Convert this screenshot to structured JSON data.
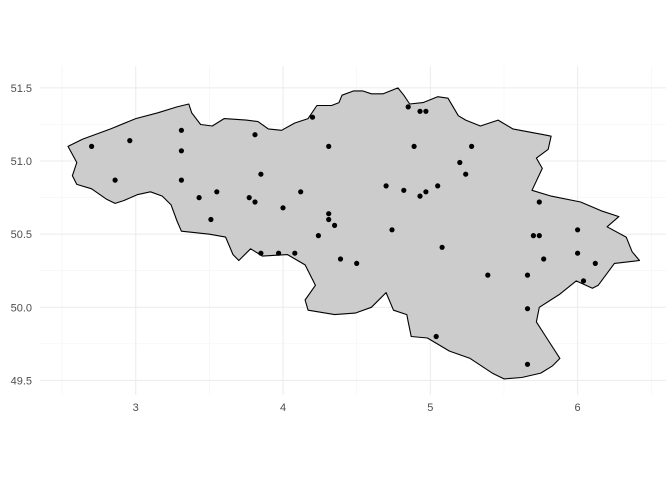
{
  "chart_data": {
    "type": "scatter",
    "title": "",
    "xlabel": "",
    "ylabel": "",
    "xlim": [
      2.35,
      6.6
    ],
    "ylim": [
      49.4,
      51.65
    ],
    "x_ticks": [
      3,
      4,
      5,
      6
    ],
    "x_tick_labels": [
      "3",
      "4",
      "5",
      "6"
    ],
    "y_ticks": [
      49.5,
      50.0,
      50.5,
      51.0,
      51.5
    ],
    "y_tick_labels": [
      "49.5",
      "50.0",
      "50.5",
      "51.0",
      "51.5"
    ],
    "grid": true,
    "legend": "none",
    "colors": {
      "fill": "#cccccc",
      "outline": "#000000",
      "points": "#000000",
      "grid": "#ebebeb",
      "tick_text": "#4d4d4d"
    },
    "outline": [
      [
        2.54,
        51.1
      ],
      [
        2.64,
        51.15
      ],
      [
        2.83,
        51.22
      ],
      [
        3.0,
        51.29
      ],
      [
        3.15,
        51.33
      ],
      [
        3.28,
        51.37
      ],
      [
        3.36,
        51.39
      ],
      [
        3.38,
        51.33
      ],
      [
        3.44,
        51.25
      ],
      [
        3.52,
        51.24
      ],
      [
        3.6,
        51.29
      ],
      [
        3.75,
        51.28
      ],
      [
        3.83,
        51.27
      ],
      [
        3.9,
        51.22
      ],
      [
        3.99,
        51.21
      ],
      [
        4.08,
        51.26
      ],
      [
        4.17,
        51.29
      ],
      [
        4.23,
        51.38
      ],
      [
        4.33,
        51.38
      ],
      [
        4.38,
        51.4
      ],
      [
        4.4,
        51.45
      ],
      [
        4.48,
        51.48
      ],
      [
        4.54,
        51.48
      ],
      [
        4.6,
        51.46
      ],
      [
        4.68,
        51.46
      ],
      [
        4.78,
        51.5
      ],
      [
        4.82,
        51.45
      ],
      [
        4.86,
        51.39
      ],
      [
        4.95,
        51.4
      ],
      [
        5.05,
        51.44
      ],
      [
        5.12,
        51.43
      ],
      [
        5.19,
        51.31
      ],
      [
        5.24,
        51.28
      ],
      [
        5.34,
        51.24
      ],
      [
        5.46,
        51.28
      ],
      [
        5.56,
        51.22
      ],
      [
        5.77,
        51.18
      ],
      [
        5.82,
        51.17
      ],
      [
        5.8,
        51.08
      ],
      [
        5.72,
        51.02
      ],
      [
        5.76,
        50.95
      ],
      [
        5.69,
        50.8
      ],
      [
        5.82,
        50.76
      ],
      [
        6.02,
        50.72
      ],
      [
        6.16,
        50.66
      ],
      [
        6.28,
        50.62
      ],
      [
        6.2,
        50.55
      ],
      [
        6.33,
        50.48
      ],
      [
        6.37,
        50.38
      ],
      [
        6.42,
        50.32
      ],
      [
        6.25,
        50.3
      ],
      [
        6.14,
        50.15
      ],
      [
        6.1,
        50.13
      ],
      [
        5.99,
        50.18
      ],
      [
        5.88,
        50.09
      ],
      [
        5.74,
        50.0
      ],
      [
        5.72,
        49.9
      ],
      [
        5.79,
        49.79
      ],
      [
        5.88,
        49.65
      ],
      [
        5.83,
        49.6
      ],
      [
        5.75,
        49.55
      ],
      [
        5.62,
        49.52
      ],
      [
        5.5,
        49.51
      ],
      [
        5.42,
        49.55
      ],
      [
        5.27,
        49.65
      ],
      [
        5.13,
        49.7
      ],
      [
        4.98,
        49.79
      ],
      [
        4.87,
        49.8
      ],
      [
        4.85,
        49.9
      ],
      [
        4.84,
        49.95
      ],
      [
        4.75,
        49.98
      ],
      [
        4.7,
        50.1
      ],
      [
        4.6,
        50.0
      ],
      [
        4.49,
        49.96
      ],
      [
        4.35,
        49.95
      ],
      [
        4.17,
        49.98
      ],
      [
        4.15,
        50.05
      ],
      [
        4.22,
        50.15
      ],
      [
        4.15,
        50.29
      ],
      [
        4.03,
        50.36
      ],
      [
        3.86,
        50.35
      ],
      [
        3.78,
        50.4
      ],
      [
        3.7,
        50.32
      ],
      [
        3.66,
        50.36
      ],
      [
        3.61,
        50.48
      ],
      [
        3.5,
        50.5
      ],
      [
        3.31,
        50.52
      ],
      [
        3.28,
        50.59
      ],
      [
        3.24,
        50.7
      ],
      [
        3.18,
        50.76
      ],
      [
        3.1,
        50.79
      ],
      [
        3.01,
        50.77
      ],
      [
        2.92,
        50.73
      ],
      [
        2.86,
        50.71
      ],
      [
        2.8,
        50.74
      ],
      [
        2.7,
        50.81
      ],
      [
        2.6,
        50.84
      ],
      [
        2.57,
        50.9
      ],
      [
        2.6,
        50.99
      ],
      [
        2.54,
        51.1
      ]
    ],
    "points": [
      {
        "x": 2.7,
        "y": 51.1
      },
      {
        "x": 2.96,
        "y": 51.14
      },
      {
        "x": 3.31,
        "y": 51.21
      },
      {
        "x": 3.31,
        "y": 51.07
      },
      {
        "x": 2.86,
        "y": 50.87
      },
      {
        "x": 3.31,
        "y": 50.87
      },
      {
        "x": 3.43,
        "y": 50.75
      },
      {
        "x": 3.55,
        "y": 50.79
      },
      {
        "x": 3.51,
        "y": 50.6
      },
      {
        "x": 3.77,
        "y": 50.75
      },
      {
        "x": 3.81,
        "y": 50.72
      },
      {
        "x": 3.85,
        "y": 50.91
      },
      {
        "x": 3.81,
        "y": 51.18
      },
      {
        "x": 4.0,
        "y": 50.68
      },
      {
        "x": 4.12,
        "y": 50.79
      },
      {
        "x": 4.2,
        "y": 51.3
      },
      {
        "x": 4.31,
        "y": 51.1
      },
      {
        "x": 4.31,
        "y": 50.64
      },
      {
        "x": 4.31,
        "y": 50.6
      },
      {
        "x": 4.35,
        "y": 50.56
      },
      {
        "x": 4.24,
        "y": 50.49
      },
      {
        "x": 4.39,
        "y": 50.33
      },
      {
        "x": 4.5,
        "y": 50.3
      },
      {
        "x": 3.85,
        "y": 50.37
      },
      {
        "x": 3.97,
        "y": 50.37
      },
      {
        "x": 4.08,
        "y": 50.37
      },
      {
        "x": 4.7,
        "y": 50.83
      },
      {
        "x": 4.74,
        "y": 50.53
      },
      {
        "x": 4.82,
        "y": 50.8
      },
      {
        "x": 4.85,
        "y": 51.37
      },
      {
        "x": 4.93,
        "y": 51.34
      },
      {
        "x": 4.97,
        "y": 51.34
      },
      {
        "x": 4.89,
        "y": 51.1
      },
      {
        "x": 4.93,
        "y": 50.76
      },
      {
        "x": 4.97,
        "y": 50.79
      },
      {
        "x": 5.05,
        "y": 50.83
      },
      {
        "x": 5.08,
        "y": 50.41
      },
      {
        "x": 5.2,
        "y": 50.99
      },
      {
        "x": 5.24,
        "y": 50.91
      },
      {
        "x": 5.28,
        "y": 51.1
      },
      {
        "x": 5.39,
        "y": 50.22
      },
      {
        "x": 5.04,
        "y": 49.8
      },
      {
        "x": 5.66,
        "y": 50.22
      },
      {
        "x": 5.66,
        "y": 49.99
      },
      {
        "x": 5.66,
        "y": 49.61
      },
      {
        "x": 5.7,
        "y": 50.49
      },
      {
        "x": 5.74,
        "y": 50.49
      },
      {
        "x": 5.74,
        "y": 50.72
      },
      {
        "x": 5.77,
        "y": 50.33
      },
      {
        "x": 6.0,
        "y": 50.53
      },
      {
        "x": 6.0,
        "y": 50.37
      },
      {
        "x": 6.04,
        "y": 50.18
      },
      {
        "x": 6.12,
        "y": 50.3
      }
    ]
  }
}
